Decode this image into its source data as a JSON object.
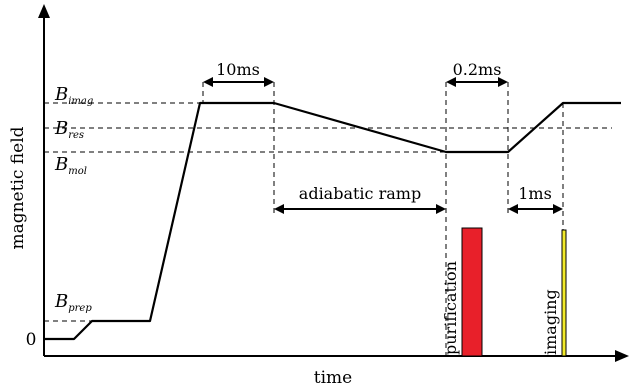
{
  "axes": {
    "y_label": "magnetic field",
    "x_label": "time",
    "y_zero": "0"
  },
  "field_levels": {
    "imag": {
      "symbol": "B",
      "sub": "imag"
    },
    "res": {
      "symbol": "B",
      "sub": "res"
    },
    "mol": {
      "symbol": "B",
      "sub": "mol"
    },
    "prep": {
      "symbol": "B",
      "sub": "prep"
    }
  },
  "annotations": {
    "hold_top": "10ms",
    "hold_bottom": "0.2ms",
    "ramp": "adiabatic ramp",
    "delay": "1ms"
  },
  "pulses": {
    "purification": {
      "label": "purification",
      "color": "#e8202a"
    },
    "imaging": {
      "label": "imaging",
      "color": "#f2ea2a"
    }
  }
}
